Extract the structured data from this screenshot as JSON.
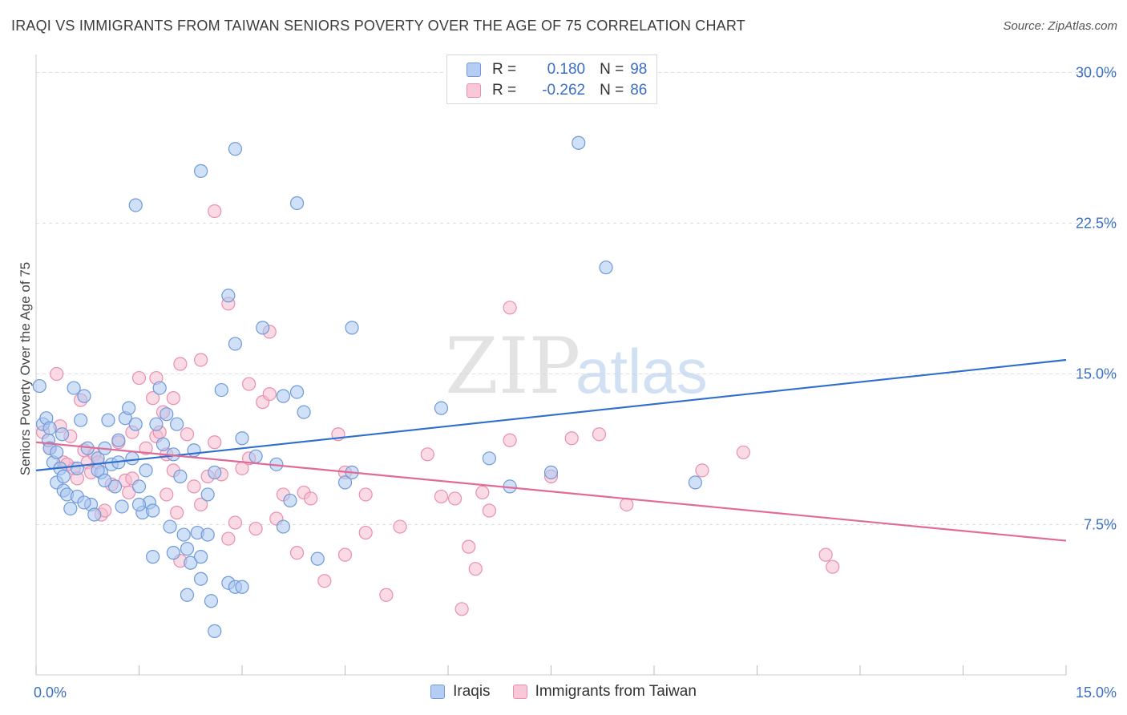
{
  "title": "IRAQI VS IMMIGRANTS FROM TAIWAN SENIORS POVERTY OVER THE AGE OF 75 CORRELATION CHART",
  "source": "Source: ZipAtlas.com",
  "watermark": {
    "zip": "ZIP",
    "atlas": "atlas"
  },
  "stats": {
    "r_label": "R =",
    "n_label": "N =",
    "rows": [
      {
        "r": "0.180",
        "n": "98"
      },
      {
        "r": "-0.262",
        "n": "86"
      }
    ]
  },
  "legend": [
    "Iraqis",
    "Immigrants from Taiwan"
  ],
  "colors": {
    "blue_fill": "#a9c6f0",
    "blue_stroke": "#6f9ad8",
    "blue_line": "#2f6fcc",
    "pink_fill": "#f6bcd0",
    "pink_stroke": "#e98fae",
    "pink_line": "#e06b98",
    "tick_label": "#3b6fc4",
    "grid": "#dddddd"
  },
  "chart_data": {
    "type": "scatter",
    "title": "IRAQI VS IMMIGRANTS FROM TAIWAN SENIORS POVERTY OVER THE AGE OF 75 CORRELATION CHART",
    "xlabel": "",
    "ylabel": "Seniors Poverty Over the Age of 75",
    "xlim": [
      0,
      15
    ],
    "ylim": [
      0.5,
      30.5
    ],
    "x_tick_labels": [
      "0.0%",
      "15.0%"
    ],
    "y_ticks": [
      7.5,
      15.0,
      22.5,
      30.0
    ],
    "y_tick_labels": [
      "7.5%",
      "15.0%",
      "22.5%",
      "30.0%"
    ],
    "grid": true,
    "legend_position": "bottom",
    "series": [
      {
        "name": "Iraqis",
        "points": [
          [
            0.05,
            14.4
          ],
          [
            0.1,
            12.5
          ],
          [
            0.15,
            12.8
          ],
          [
            0.18,
            11.7
          ],
          [
            0.2,
            11.3
          ],
          [
            0.25,
            10.6
          ],
          [
            0.3,
            9.6
          ],
          [
            0.35,
            10.3
          ],
          [
            0.38,
            12.0
          ],
          [
            0.4,
            9.2
          ],
          [
            0.45,
            9.0
          ],
          [
            0.5,
            8.3
          ],
          [
            0.55,
            14.3
          ],
          [
            0.6,
            10.3
          ],
          [
            0.65,
            12.7
          ],
          [
            0.7,
            13.9
          ],
          [
            0.75,
            11.3
          ],
          [
            0.8,
            8.5
          ],
          [
            0.85,
            8.0
          ],
          [
            0.9,
            10.8
          ],
          [
            0.95,
            10.1
          ],
          [
            1.0,
            11.3
          ],
          [
            1.05,
            12.7
          ],
          [
            1.1,
            10.5
          ],
          [
            1.15,
            9.4
          ],
          [
            1.2,
            11.7
          ],
          [
            1.25,
            8.4
          ],
          [
            1.3,
            12.8
          ],
          [
            1.35,
            13.3
          ],
          [
            1.4,
            10.8
          ],
          [
            1.45,
            12.5
          ],
          [
            1.5,
            9.4
          ],
          [
            1.55,
            8.1
          ],
          [
            1.6,
            10.2
          ],
          [
            1.65,
            8.6
          ],
          [
            1.7,
            8.2
          ],
          [
            1.75,
            12.5
          ],
          [
            1.8,
            14.3
          ],
          [
            1.85,
            11.5
          ],
          [
            1.9,
            13.0
          ],
          [
            1.95,
            7.4
          ],
          [
            2.0,
            6.1
          ],
          [
            2.05,
            12.5
          ],
          [
            2.1,
            9.9
          ],
          [
            2.15,
            7.0
          ],
          [
            2.2,
            6.3
          ],
          [
            2.25,
            5.6
          ],
          [
            2.3,
            11.2
          ],
          [
            2.35,
            7.1
          ],
          [
            2.4,
            4.8
          ],
          [
            2.5,
            9.0
          ],
          [
            2.55,
            3.7
          ],
          [
            2.6,
            10.1
          ],
          [
            2.7,
            14.2
          ],
          [
            2.8,
            4.6
          ],
          [
            2.9,
            4.4
          ],
          [
            3.0,
            11.8
          ],
          [
            3.5,
            10.5
          ],
          [
            3.6,
            7.4
          ],
          [
            3.7,
            8.7
          ],
          [
            3.9,
            13.1
          ],
          [
            4.1,
            5.8
          ],
          [
            4.5,
            9.6
          ],
          [
            4.6,
            10.1
          ],
          [
            6.6,
            10.8
          ],
          [
            6.9,
            9.4
          ],
          [
            7.5,
            10.1
          ],
          [
            9.6,
            9.6
          ],
          [
            3.3,
            17.3
          ],
          [
            3.8,
            14.1
          ],
          [
            3.6,
            13.9
          ],
          [
            2.9,
            16.5
          ],
          [
            5.9,
            13.3
          ],
          [
            4.6,
            17.3
          ],
          [
            1.45,
            23.4
          ],
          [
            2.4,
            25.1
          ],
          [
            3.8,
            23.5
          ],
          [
            2.9,
            26.2
          ],
          [
            7.9,
            26.5
          ],
          [
            8.3,
            20.3
          ],
          [
            2.8,
            18.9
          ],
          [
            1.7,
            5.9
          ],
          [
            2.2,
            4.0
          ],
          [
            2.4,
            5.9
          ],
          [
            3.0,
            4.4
          ],
          [
            2.5,
            7.0
          ],
          [
            0.3,
            11.1
          ],
          [
            0.6,
            8.9
          ],
          [
            0.9,
            10.2
          ],
          [
            1.2,
            10.6
          ],
          [
            0.2,
            12.3
          ],
          [
            0.4,
            9.9
          ],
          [
            1.0,
            9.7
          ],
          [
            1.5,
            8.5
          ],
          [
            2.0,
            11.0
          ],
          [
            0.7,
            8.6
          ],
          [
            3.2,
            10.9
          ],
          [
            2.6,
            2.2
          ]
        ]
      },
      {
        "name": "Immigrants from Taiwan",
        "points": [
          [
            0.1,
            12.1
          ],
          [
            0.2,
            11.3
          ],
          [
            0.3,
            15.0
          ],
          [
            0.35,
            12.4
          ],
          [
            0.4,
            10.6
          ],
          [
            0.5,
            11.9
          ],
          [
            0.55,
            10.3
          ],
          [
            0.6,
            9.8
          ],
          [
            0.65,
            13.7
          ],
          [
            0.7,
            11.2
          ],
          [
            0.75,
            10.6
          ],
          [
            0.8,
            10.1
          ],
          [
            0.85,
            11.0
          ],
          [
            0.9,
            10.6
          ],
          [
            0.95,
            8.0
          ],
          [
            1.0,
            8.2
          ],
          [
            1.1,
            9.5
          ],
          [
            1.2,
            11.6
          ],
          [
            1.3,
            9.7
          ],
          [
            1.35,
            9.1
          ],
          [
            1.4,
            12.1
          ],
          [
            1.5,
            14.8
          ],
          [
            1.6,
            11.3
          ],
          [
            1.7,
            13.8
          ],
          [
            1.75,
            11.9
          ],
          [
            1.8,
            12.1
          ],
          [
            1.85,
            13.1
          ],
          [
            1.9,
            11.0
          ],
          [
            2.0,
            10.2
          ],
          [
            2.05,
            8.1
          ],
          [
            2.1,
            5.7
          ],
          [
            2.2,
            12.0
          ],
          [
            2.3,
            9.4
          ],
          [
            2.4,
            8.5
          ],
          [
            2.5,
            9.9
          ],
          [
            2.6,
            11.6
          ],
          [
            2.7,
            10.0
          ],
          [
            2.8,
            6.8
          ],
          [
            2.9,
            7.6
          ],
          [
            3.0,
            10.3
          ],
          [
            3.1,
            10.8
          ],
          [
            3.2,
            7.3
          ],
          [
            3.3,
            13.6
          ],
          [
            3.4,
            14.0
          ],
          [
            3.5,
            7.8
          ],
          [
            3.6,
            9.0
          ],
          [
            3.8,
            6.1
          ],
          [
            3.9,
            9.1
          ],
          [
            4.0,
            8.8
          ],
          [
            4.2,
            4.7
          ],
          [
            4.4,
            12.0
          ],
          [
            4.5,
            6.0
          ],
          [
            4.8,
            7.1
          ],
          [
            5.1,
            4.0
          ],
          [
            5.3,
            7.4
          ],
          [
            5.7,
            11.0
          ],
          [
            6.1,
            8.8
          ],
          [
            6.3,
            6.4
          ],
          [
            6.5,
            9.1
          ],
          [
            6.6,
            8.2
          ],
          [
            6.9,
            11.7
          ],
          [
            7.5,
            9.9
          ],
          [
            7.8,
            11.8
          ],
          [
            8.2,
            12.0
          ],
          [
            8.6,
            8.5
          ],
          [
            9.7,
            10.2
          ],
          [
            10.3,
            11.1
          ],
          [
            11.5,
            6.0
          ],
          [
            11.6,
            5.4
          ],
          [
            2.1,
            15.5
          ],
          [
            2.6,
            23.1
          ],
          [
            2.8,
            18.5
          ],
          [
            3.1,
            14.5
          ],
          [
            6.9,
            18.3
          ],
          [
            2.4,
            15.7
          ],
          [
            1.75,
            14.8
          ],
          [
            3.4,
            17.1
          ],
          [
            2.0,
            13.8
          ],
          [
            4.5,
            10.1
          ],
          [
            4.8,
            9.0
          ],
          [
            5.9,
            8.9
          ],
          [
            6.2,
            3.3
          ],
          [
            6.4,
            5.3
          ],
          [
            1.4,
            9.8
          ],
          [
            1.9,
            9.0
          ],
          [
            0.45,
            10.5
          ]
        ]
      }
    ],
    "trendlines": [
      {
        "name": "Iraqis",
        "x": [
          0,
          15
        ],
        "y": [
          10.2,
          15.7
        ]
      },
      {
        "name": "Immigrants from Taiwan",
        "x": [
          0,
          15
        ],
        "y": [
          11.6,
          6.7
        ]
      }
    ]
  }
}
